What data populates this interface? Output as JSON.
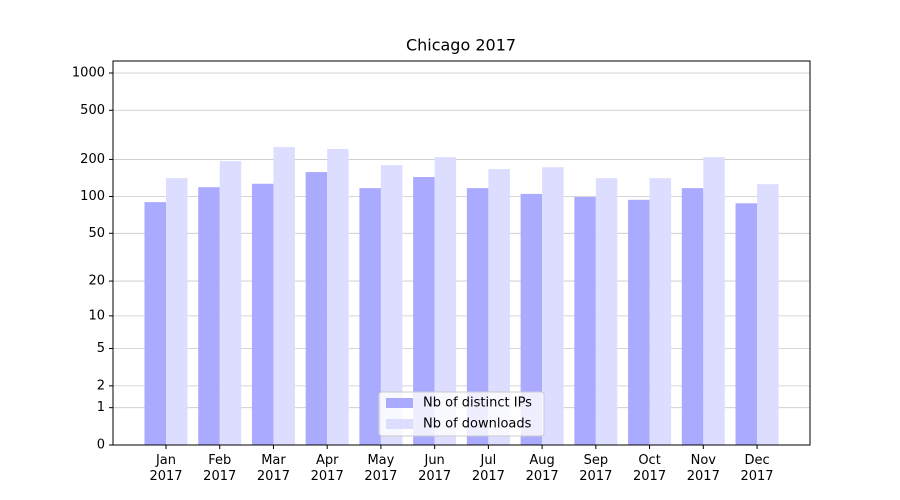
{
  "chart_data": {
    "type": "bar",
    "title": "Chicago 2017",
    "categories": [
      "Jan\n2017",
      "Feb\n2017",
      "Mar\n2017",
      "Apr\n2017",
      "May\n2017",
      "Jun\n2017",
      "Jul\n2017",
      "Aug\n2017",
      "Sep\n2017",
      "Oct\n2017",
      "Nov\n2017",
      "Dec\n2017"
    ],
    "series": [
      {
        "name": "Nb of distinct IPs",
        "color": "#aaaaff",
        "values": [
          90,
          119,
          127,
          158,
          117,
          144,
          117,
          105,
          99,
          94,
          117,
          88
        ]
      },
      {
        "name": "Nb of downloads",
        "color": "#ddddff",
        "values": [
          141,
          194,
          252,
          243,
          180,
          209,
          167,
          173,
          141,
          141,
          209,
          126
        ]
      }
    ],
    "yscale": "log1p",
    "ylim": [
      0,
      1250
    ],
    "yticks": [
      0,
      1,
      2,
      5,
      10,
      20,
      50,
      100,
      200,
      500,
      1000
    ],
    "grid": true,
    "legend": "lower center"
  }
}
